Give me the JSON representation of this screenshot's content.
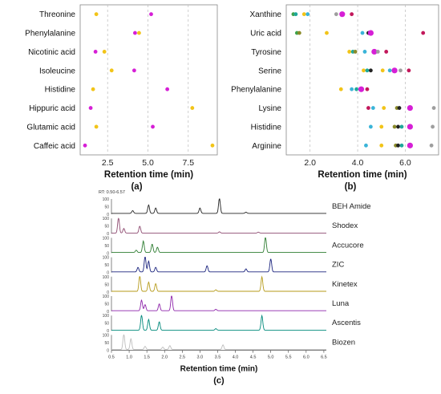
{
  "chart_data": [
    {
      "panel_label": "(a)",
      "type": "scatter",
      "xlabel": "Retention time (min)",
      "ylabel": "",
      "xlim": [
        0.8,
        9.3
      ],
      "x_ticks": [
        2.5,
        5.0,
        7.5
      ],
      "x_tick_labels": [
        "2.5",
        "5.0",
        "7.5"
      ],
      "grid": "vertical dashed",
      "categories": [
        "Threonine",
        "Phenylalanine",
        "Nicotinic acid",
        "Isoleucine",
        "Histidine",
        "Hippuric acid",
        "Glutamic acid",
        "Caffeic acid"
      ],
      "colors": {
        "yellow": "#f2c418",
        "magenta": "#d61fd6"
      },
      "points": [
        {
          "category": "Threonine",
          "x": 1.8,
          "color": "yellow"
        },
        {
          "category": "Threonine",
          "x": 5.2,
          "color": "magenta"
        },
        {
          "category": "Phenylalanine",
          "x": 4.2,
          "color": "magenta"
        },
        {
          "category": "Phenylalanine",
          "x": 4.45,
          "color": "yellow"
        },
        {
          "category": "Nicotinic acid",
          "x": 1.75,
          "color": "magenta"
        },
        {
          "category": "Nicotinic acid",
          "x": 2.3,
          "color": "yellow"
        },
        {
          "category": "Isoleucine",
          "x": 2.75,
          "color": "yellow"
        },
        {
          "category": "Isoleucine",
          "x": 4.15,
          "color": "magenta"
        },
        {
          "category": "Histidine",
          "x": 1.6,
          "color": "yellow"
        },
        {
          "category": "Histidine",
          "x": 6.2,
          "color": "magenta"
        },
        {
          "category": "Hippuric acid",
          "x": 1.45,
          "color": "magenta"
        },
        {
          "category": "Hippuric acid",
          "x": 7.75,
          "color": "yellow"
        },
        {
          "category": "Glutamic acid",
          "x": 1.8,
          "color": "yellow"
        },
        {
          "category": "Glutamic acid",
          "x": 5.3,
          "color": "magenta"
        },
        {
          "category": "Caffeic acid",
          "x": 1.1,
          "color": "magenta"
        },
        {
          "category": "Caffeic acid",
          "x": 9.0,
          "color": "yellow"
        }
      ]
    },
    {
      "panel_label": "(b)",
      "type": "scatter",
      "xlabel": "Retention time (min)",
      "ylabel": "",
      "xlim": [
        1.0,
        7.4
      ],
      "x_ticks": [
        2.0,
        4.0,
        6.0
      ],
      "x_tick_labels": [
        "2.0",
        "4.0",
        "6.0"
      ],
      "grid": "vertical dashed",
      "categories": [
        "Xanthine",
        "Uric acid",
        "Tyrosine",
        "Serine",
        "Phenylalanine",
        "Lysine",
        "Histidine",
        "Arginine"
      ],
      "colors": {
        "green": "#3ea34a",
        "olive": "#8b8b2a",
        "yellow": "#f2c418",
        "cyan": "#3ab4d8",
        "teal": "#1fa89a",
        "black": "#222222",
        "magenta": "#d61fd6",
        "red": "#c2185b",
        "gray": "#9e9e9e",
        "purple": "#8e24aa"
      },
      "points": [
        {
          "category": "Xanthine",
          "x": 1.3,
          "color": "green"
        },
        {
          "category": "Xanthine",
          "x": 1.4,
          "color": "teal"
        },
        {
          "category": "Xanthine",
          "x": 1.75,
          "color": "yellow"
        },
        {
          "category": "Xanthine",
          "x": 1.9,
          "color": "cyan"
        },
        {
          "category": "Xanthine",
          "x": 3.1,
          "color": "gray"
        },
        {
          "category": "Xanthine",
          "x": 3.35,
          "color": "magenta",
          "size": "large"
        },
        {
          "category": "Xanthine",
          "x": 3.75,
          "color": "red"
        },
        {
          "category": "Uric acid",
          "x": 1.45,
          "color": "green"
        },
        {
          "category": "Uric acid",
          "x": 1.55,
          "color": "olive"
        },
        {
          "category": "Uric acid",
          "x": 2.7,
          "color": "yellow"
        },
        {
          "category": "Uric acid",
          "x": 4.2,
          "color": "cyan"
        },
        {
          "category": "Uric acid",
          "x": 4.45,
          "color": "black"
        },
        {
          "category": "Uric acid",
          "x": 4.55,
          "color": "magenta",
          "size": "large"
        },
        {
          "category": "Uric acid",
          "x": 6.75,
          "color": "red"
        },
        {
          "category": "Tyrosine",
          "x": 3.65,
          "color": "yellow"
        },
        {
          "category": "Tyrosine",
          "x": 3.8,
          "color": "teal"
        },
        {
          "category": "Tyrosine",
          "x": 3.9,
          "color": "olive"
        },
        {
          "category": "Tyrosine",
          "x": 4.3,
          "color": "cyan"
        },
        {
          "category": "Tyrosine",
          "x": 4.7,
          "color": "magenta",
          "size": "large"
        },
        {
          "category": "Tyrosine",
          "x": 4.85,
          "color": "gray"
        },
        {
          "category": "Tyrosine",
          "x": 5.2,
          "color": "red"
        },
        {
          "category": "Serine",
          "x": 4.25,
          "color": "yellow"
        },
        {
          "category": "Serine",
          "x": 4.4,
          "color": "teal"
        },
        {
          "category": "Serine",
          "x": 4.55,
          "color": "black"
        },
        {
          "category": "Serine",
          "x": 5.05,
          "color": "yellow"
        },
        {
          "category": "Serine",
          "x": 5.35,
          "color": "cyan"
        },
        {
          "category": "Serine",
          "x": 5.55,
          "color": "magenta",
          "size": "large"
        },
        {
          "category": "Serine",
          "x": 5.8,
          "color": "gray"
        },
        {
          "category": "Serine",
          "x": 6.15,
          "color": "red"
        },
        {
          "category": "Phenylalanine",
          "x": 3.3,
          "color": "yellow"
        },
        {
          "category": "Phenylalanine",
          "x": 3.75,
          "color": "cyan"
        },
        {
          "category": "Phenylalanine",
          "x": 3.95,
          "color": "teal"
        },
        {
          "category": "Phenylalanine",
          "x": 4.15,
          "color": "magenta",
          "size": "large"
        },
        {
          "category": "Phenylalanine",
          "x": 4.4,
          "color": "red"
        },
        {
          "category": "Lysine",
          "x": 4.45,
          "color": "red"
        },
        {
          "category": "Lysine",
          "x": 4.65,
          "color": "cyan"
        },
        {
          "category": "Lysine",
          "x": 5.1,
          "color": "yellow"
        },
        {
          "category": "Lysine",
          "x": 5.65,
          "color": "olive"
        },
        {
          "category": "Lysine",
          "x": 5.75,
          "color": "black"
        },
        {
          "category": "Lysine",
          "x": 6.2,
          "color": "magenta",
          "size": "large"
        },
        {
          "category": "Lysine",
          "x": 7.2,
          "color": "gray"
        },
        {
          "category": "Histidine",
          "x": 4.55,
          "color": "cyan"
        },
        {
          "category": "Histidine",
          "x": 5.0,
          "color": "yellow"
        },
        {
          "category": "Histidine",
          "x": 5.55,
          "color": "olive"
        },
        {
          "category": "Histidine",
          "x": 5.7,
          "color": "black"
        },
        {
          "category": "Histidine",
          "x": 5.85,
          "color": "teal"
        },
        {
          "category": "Histidine",
          "x": 6.2,
          "color": "magenta",
          "size": "large"
        },
        {
          "category": "Histidine",
          "x": 7.15,
          "color": "gray"
        },
        {
          "category": "Arginine",
          "x": 4.35,
          "color": "cyan"
        },
        {
          "category": "Arginine",
          "x": 5.0,
          "color": "yellow"
        },
        {
          "category": "Arginine",
          "x": 5.6,
          "color": "olive"
        },
        {
          "category": "Arginine",
          "x": 5.7,
          "color": "black"
        },
        {
          "category": "Arginine",
          "x": 5.85,
          "color": "teal"
        },
        {
          "category": "Arginine",
          "x": 6.2,
          "color": "magenta",
          "size": "large"
        },
        {
          "category": "Arginine",
          "x": 7.1,
          "color": "gray"
        }
      ]
    },
    {
      "panel_label": "(c)",
      "type": "line",
      "header": "RT: 0.50-6.57",
      "xlabel": "Retention time (min)",
      "ylabel": "",
      "xlim": [
        0.5,
        6.57
      ],
      "ylim": [
        0,
        100
      ],
      "x_ticks": [
        0.5,
        1.0,
        1.5,
        2.0,
        2.5,
        3.0,
        3.5,
        4.0,
        4.5,
        5.0,
        5.5,
        6.0,
        6.5
      ],
      "x_tick_labels": [
        "0.5",
        "1.0",
        "1.5",
        "2.0",
        "2.5",
        "3.0",
        "3.5",
        "4.0",
        "4.5",
        "5.0",
        "5.5",
        "6.0",
        "6.5"
      ],
      "y_ticks": [
        0,
        50,
        100
      ],
      "y_tick_labels": [
        "0",
        "50",
        "100"
      ],
      "series": [
        {
          "name": "BEH Amide",
          "color": "#222222",
          "baseline": 6,
          "peaks": [
            [
              1.1,
              18
            ],
            [
              1.55,
              55
            ],
            [
              1.75,
              35
            ],
            [
              3.0,
              35
            ],
            [
              3.55,
              100
            ],
            [
              4.3,
              8
            ]
          ]
        },
        {
          "name": "Shodex",
          "color": "#8e4a70",
          "baseline": 4,
          "peaks": [
            [
              0.7,
              100
            ],
            [
              0.85,
              30
            ],
            [
              1.3,
              45
            ],
            [
              3.55,
              8
            ],
            [
              4.65,
              6
            ]
          ]
        },
        {
          "name": "Accucore",
          "color": "#2e7d32",
          "baseline": 4,
          "peaks": [
            [
              1.2,
              15
            ],
            [
              1.4,
              75
            ],
            [
              1.65,
              55
            ],
            [
              1.8,
              35
            ],
            [
              4.85,
              100
            ]
          ]
        },
        {
          "name": "ZIC",
          "color": "#1a237e",
          "baseline": 4,
          "peaks": [
            [
              1.25,
              30
            ],
            [
              1.45,
              100
            ],
            [
              1.55,
              70
            ],
            [
              1.75,
              30
            ],
            [
              3.2,
              40
            ],
            [
              4.3,
              20
            ],
            [
              5.0,
              85
            ]
          ]
        },
        {
          "name": "Kinetex",
          "color": "#b59a1a",
          "baseline": 4,
          "peaks": [
            [
              1.3,
              100
            ],
            [
              1.55,
              60
            ],
            [
              1.75,
              50
            ],
            [
              3.45,
              10
            ],
            [
              4.75,
              95
            ]
          ]
        },
        {
          "name": "Luna",
          "color": "#8e24aa",
          "baseline": 4,
          "peaks": [
            [
              1.35,
              70
            ],
            [
              1.45,
              40
            ],
            [
              1.85,
              45
            ],
            [
              2.2,
              100
            ],
            [
              3.45,
              10
            ]
          ]
        },
        {
          "name": "Ascentis",
          "color": "#00897b",
          "baseline": 4,
          "peaks": [
            [
              1.35,
              100
            ],
            [
              1.55,
              70
            ],
            [
              1.85,
              55
            ],
            [
              3.45,
              10
            ],
            [
              4.75,
              95
            ]
          ]
        },
        {
          "name": "Biozen",
          "color": "#bdbdbd",
          "baseline": 5,
          "peaks": [
            [
              0.85,
              100
            ],
            [
              1.05,
              70
            ],
            [
              1.45,
              20
            ],
            [
              1.95,
              15
            ],
            [
              2.15,
              25
            ],
            [
              3.65,
              30
            ]
          ]
        }
      ]
    }
  ]
}
